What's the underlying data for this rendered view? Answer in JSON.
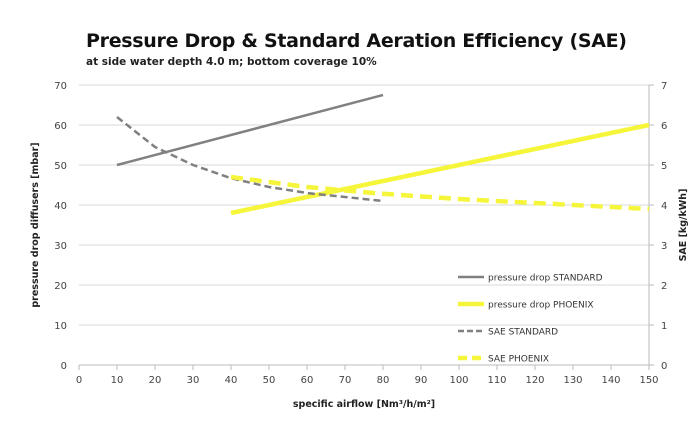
{
  "chart_data": {
    "type": "line",
    "title": "Pressure Drop & Standard Aeration Efficiency (SAE)",
    "subtitle": "at side water depth 4.0 m; bottom coverage 10%",
    "xlabel": "specific airflow [Nm³/h/m²]",
    "ylabel": "pressure drop diffusers [mbar]",
    "y2label": "SAE [kg/kWh]",
    "xlim": [
      0,
      150
    ],
    "ylim": [
      0,
      70
    ],
    "y2lim": [
      0,
      7
    ],
    "xticks": [
      "0",
      "10",
      "20",
      "30",
      "40",
      "50",
      "60",
      "70",
      "80",
      "90",
      "100",
      "110",
      "120",
      "130",
      "140",
      "150"
    ],
    "yticks": [
      "0",
      "10",
      "20",
      "30",
      "40",
      "50",
      "60",
      "70"
    ],
    "y2ticks": [
      "0",
      "1",
      "2",
      "3",
      "4",
      "5",
      "6",
      "7"
    ],
    "grid": true,
    "legend_position": "right-center",
    "series": [
      {
        "name": "pressure drop STANDARD",
        "axis": "left",
        "color": "#808080",
        "dash": false,
        "x": [
          10,
          80
        ],
        "y": [
          50,
          67.5
        ]
      },
      {
        "name": "pressure drop PHOENIX",
        "axis": "left",
        "color": "#f5f53a",
        "dash": false,
        "x": [
          40,
          150
        ],
        "y": [
          38,
          60
        ]
      },
      {
        "name": "SAE STANDARD",
        "axis": "right",
        "color": "#808080",
        "dash": true,
        "x": [
          10,
          20,
          30,
          40,
          50,
          60,
          70,
          80
        ],
        "y": [
          6.2,
          5.45,
          5.0,
          4.67,
          4.45,
          4.3,
          4.2,
          4.1
        ]
      },
      {
        "name": "SAE PHOENIX",
        "axis": "right",
        "color": "#f5f53a",
        "dash": true,
        "x": [
          40,
          60,
          80,
          100,
          120,
          150
        ],
        "y": [
          4.7,
          4.45,
          4.28,
          4.15,
          4.05,
          3.9
        ]
      }
    ]
  }
}
